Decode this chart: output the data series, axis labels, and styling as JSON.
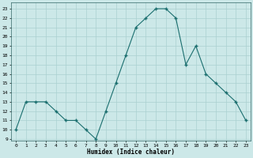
{
  "x": [
    0,
    1,
    2,
    3,
    4,
    5,
    6,
    7,
    8,
    9,
    10,
    11,
    12,
    13,
    14,
    15,
    16,
    17,
    18,
    19,
    20,
    21,
    22,
    23
  ],
  "y": [
    10,
    13,
    13,
    13,
    12,
    11,
    11,
    10,
    9,
    12,
    15,
    18,
    21,
    22,
    23,
    23,
    22,
    17,
    19,
    16,
    15,
    14,
    13,
    11
  ],
  "line_color": "#1a6e6e",
  "marker": "+",
  "bg_color": "#cce8e8",
  "grid_color": "#aad0d0",
  "xlabel": "Humidex (Indice chaleur)",
  "ylabel_ticks": [
    9,
    10,
    11,
    12,
    13,
    14,
    15,
    16,
    17,
    18,
    19,
    20,
    21,
    22,
    23
  ],
  "ylim": [
    8.8,
    23.7
  ],
  "xlim": [
    -0.5,
    23.5
  ]
}
